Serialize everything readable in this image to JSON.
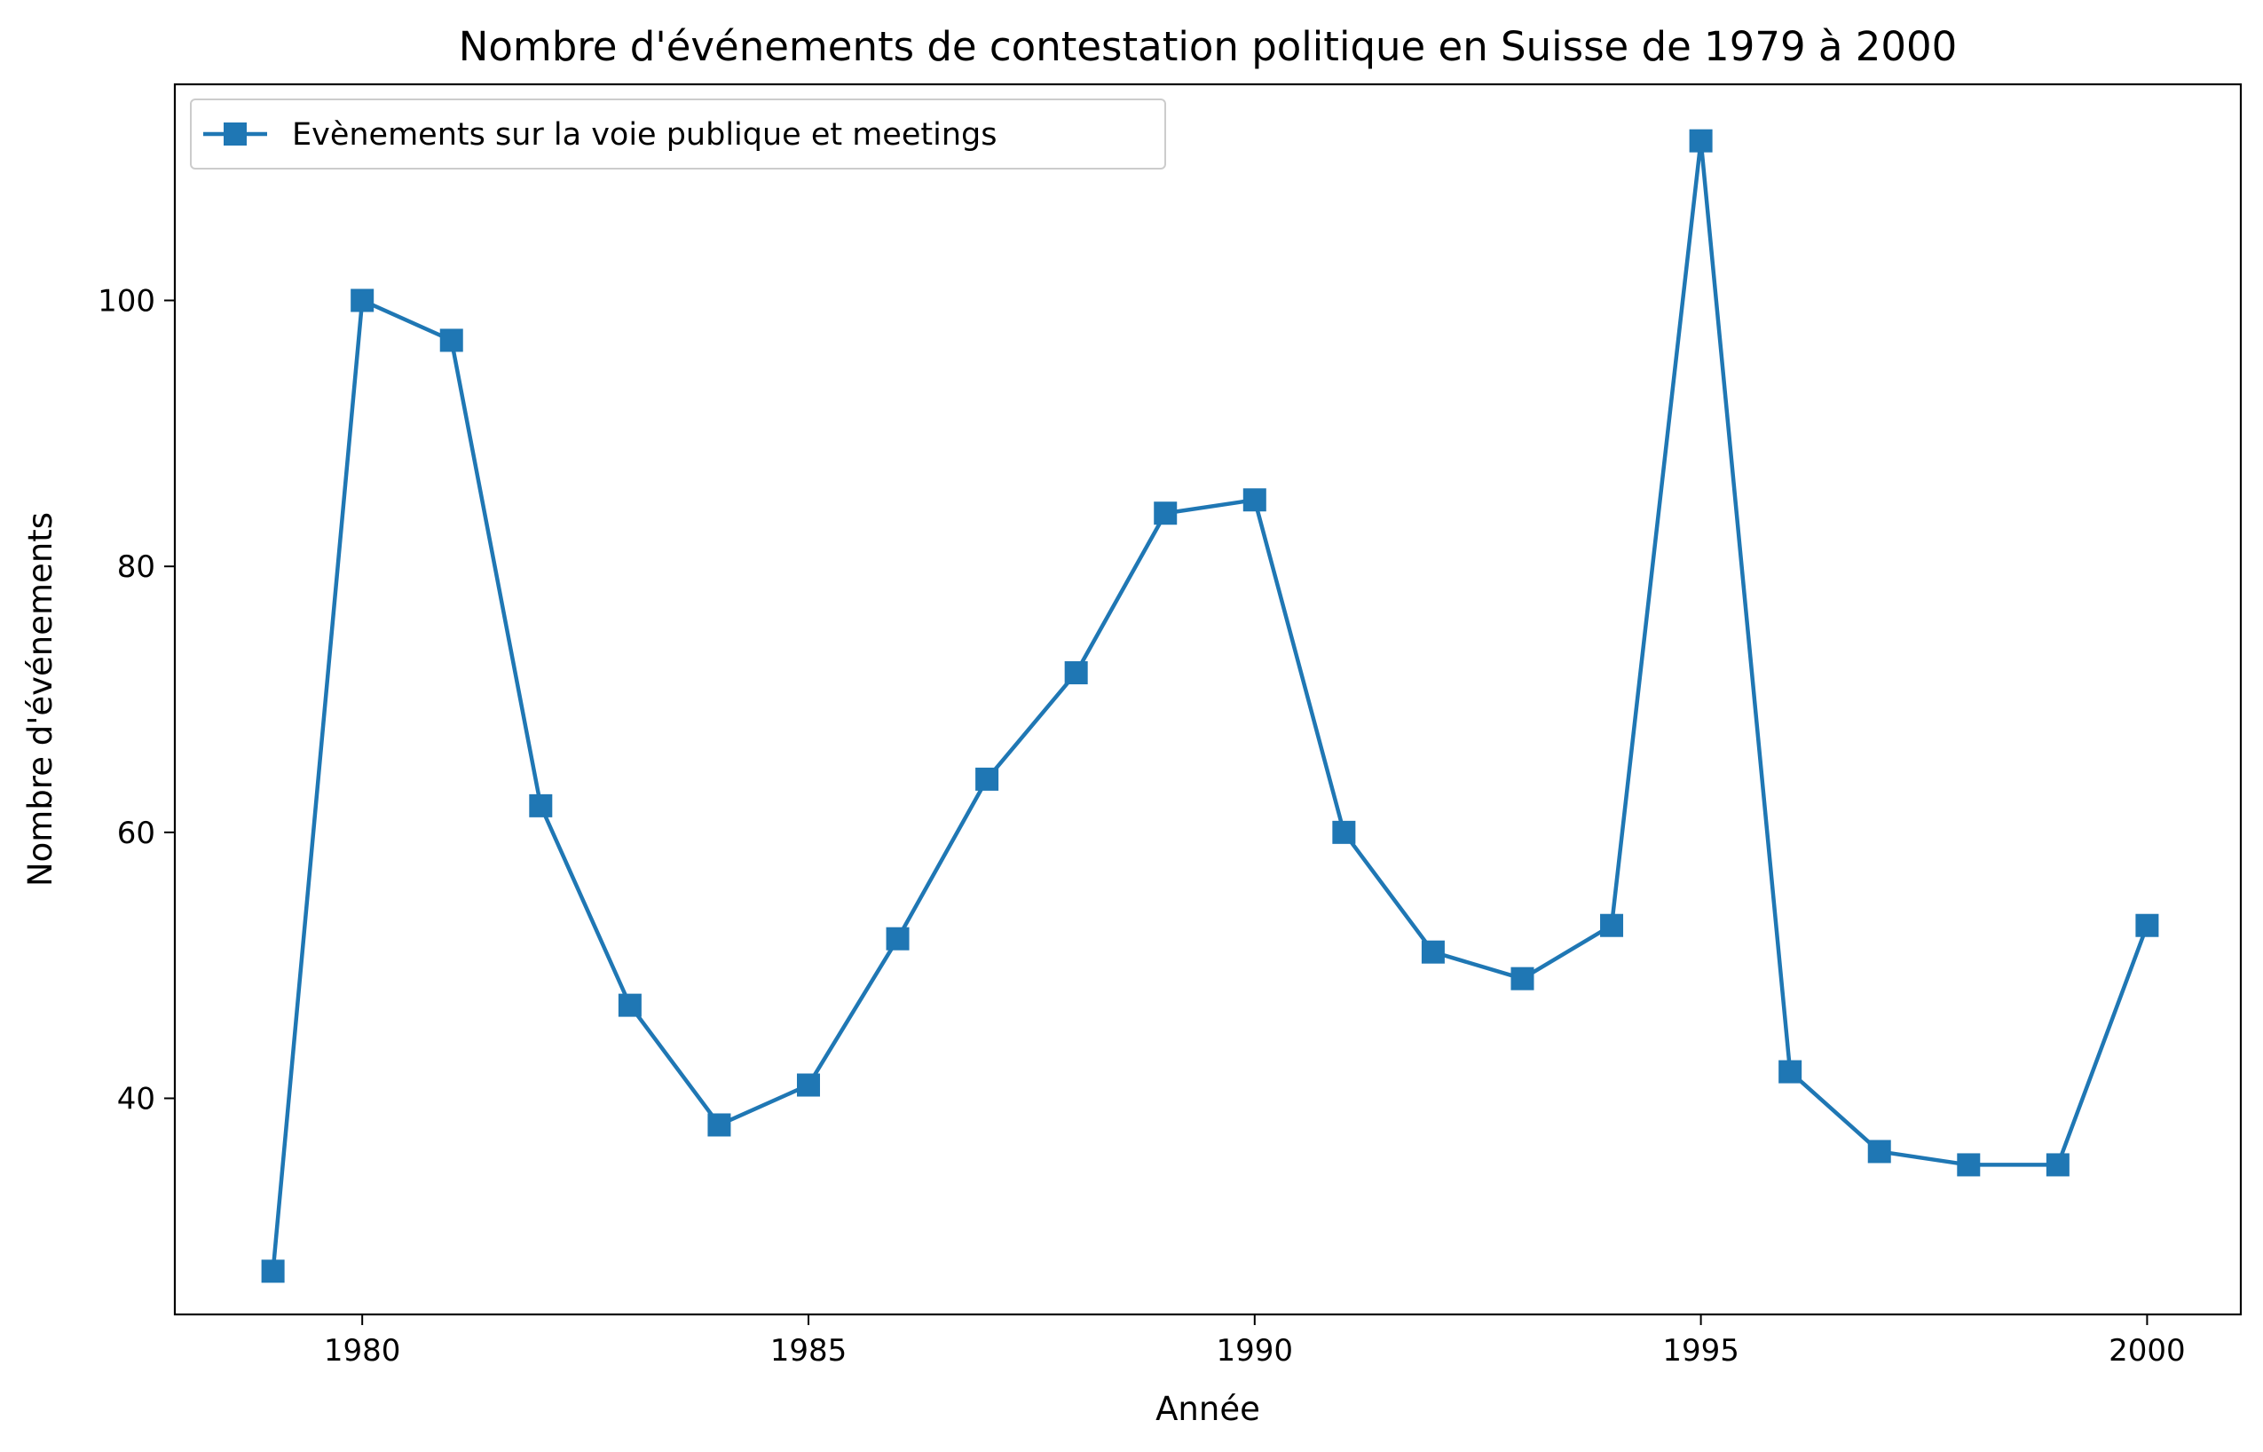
{
  "chart_data": {
    "type": "line",
    "title": "Nombre d'événements de contestation politique en Suisse de 1979 à 2000",
    "xlabel": "Année",
    "ylabel": "Nombre d'événements",
    "xlim": [
      1977.9,
      2001.05
    ],
    "ylim": [
      23.75,
      116.25
    ],
    "xticks": [
      1980,
      1985,
      1990,
      1995,
      2000
    ],
    "xtick_labels": [
      "1980",
      "1985",
      "1990",
      "1995",
      "2000"
    ],
    "yticks": [
      40,
      60,
      80,
      100
    ],
    "ytick_labels": [
      "40",
      "60",
      "80",
      "100"
    ],
    "grid": false,
    "legend_position": "top-left",
    "series": [
      {
        "name": "Evènements sur la voie publique et meetings",
        "color": "#1f77b4",
        "marker": "square",
        "x": [
          1979,
          1980,
          1981,
          1982,
          1983,
          1984,
          1985,
          1986,
          1987,
          1988,
          1989,
          1990,
          1991,
          1992,
          1993,
          1994,
          1995,
          1996,
          1997,
          1998,
          1999,
          2000
        ],
        "y": [
          27,
          100,
          97,
          62,
          47,
          38,
          41,
          52,
          64,
          72,
          84,
          85,
          60,
          51,
          49,
          53,
          112,
          42,
          36,
          35,
          35,
          53
        ]
      }
    ]
  }
}
